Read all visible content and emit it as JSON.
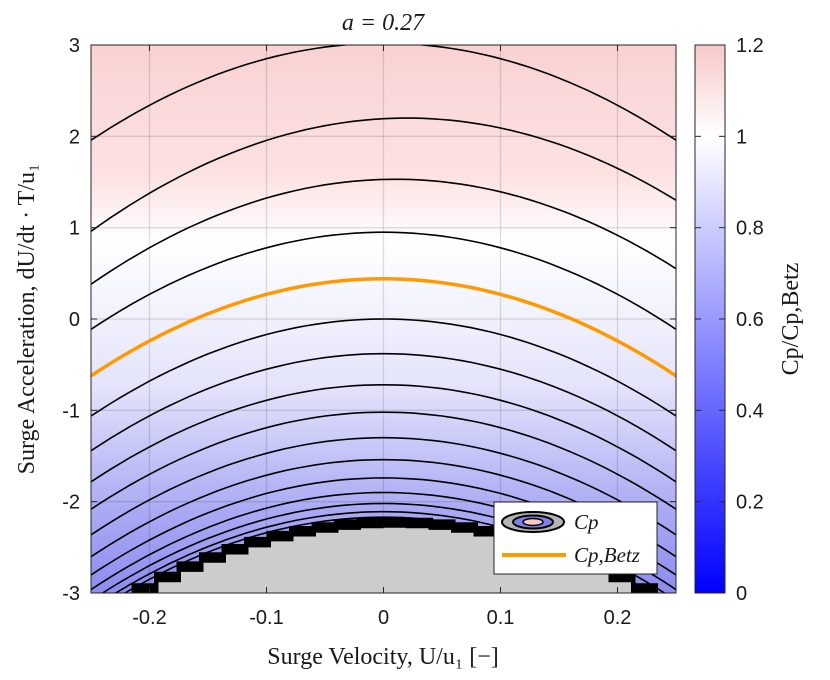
{
  "chart_data": {
    "type": "contour",
    "title": "a = 0.27",
    "xlabel": "Surge Velocity, U/u₁ [−]",
    "ylabel": "Surge Acceleration, dU/dt · T/u₁",
    "xlim": [
      -0.25,
      0.25
    ],
    "ylim": [
      -3,
      3
    ],
    "xticks": [
      -0.2,
      -0.1,
      0,
      0.1,
      0.2
    ],
    "xtick_labels": [
      "-0.2",
      "-0.1",
      "0",
      "0.1",
      "0.2"
    ],
    "yticks": [
      -3,
      -2,
      -1,
      0,
      1,
      2,
      3
    ],
    "ytick_labels": [
      "-3",
      "-2",
      "-1",
      "0",
      "1",
      "2",
      "3"
    ],
    "grid": true,
    "colorbar": {
      "label": "Cp/Cp,Betz",
      "range": [
        0,
        1.2
      ],
      "ticks": [
        0,
        0.2,
        0.4,
        0.6,
        0.8,
        1,
        1.2
      ],
      "tick_labels": [
        "0",
        "0.2",
        "0.4",
        "0.6",
        "0.8",
        "1",
        "1.2"
      ],
      "colors": {
        "low": "#0000ff",
        "mid": "#ffffff",
        "high": "#f8c8c8"
      }
    },
    "contour_lines": [
      {
        "y_center": 3.02,
        "x_vertex": 0.0
      },
      {
        "y_center": 2.2,
        "x_vertex": 0.02
      },
      {
        "y_center": 1.53,
        "x_vertex": 0.01
      },
      {
        "y_center": 0.95,
        "x_vertex": 0.0
      },
      {
        "y_center": 0.44,
        "x_vertex": 0.0,
        "betz": true
      },
      {
        "y_center": 0.0,
        "x_vertex": 0.0
      },
      {
        "y_center": -0.38,
        "x_vertex": 0.0
      },
      {
        "y_center": -0.72,
        "x_vertex": 0.0
      },
      {
        "y_center": -1.02,
        "x_vertex": 0.0
      },
      {
        "y_center": -1.3,
        "x_vertex": 0.0
      },
      {
        "y_center": -1.54,
        "x_vertex": 0.0
      },
      {
        "y_center": -1.74,
        "x_vertex": 0.0
      },
      {
        "y_center": -1.9,
        "x_vertex": 0.0
      },
      {
        "y_center": -2.02,
        "x_vertex": 0.0
      },
      {
        "y_center": -2.11,
        "x_vertex": 0.0
      },
      {
        "y_center": -2.17,
        "x_vertex": 0.0
      }
    ],
    "undefined_region": {
      "y_top": -2.22,
      "color": "#cccccc"
    },
    "legend": {
      "position": "bottom-right",
      "entries": [
        {
          "label": "Cp",
          "kind": "contour-patch"
        },
        {
          "label": "Cp,Betz",
          "kind": "line",
          "color": "#ff9900"
        }
      ]
    }
  }
}
